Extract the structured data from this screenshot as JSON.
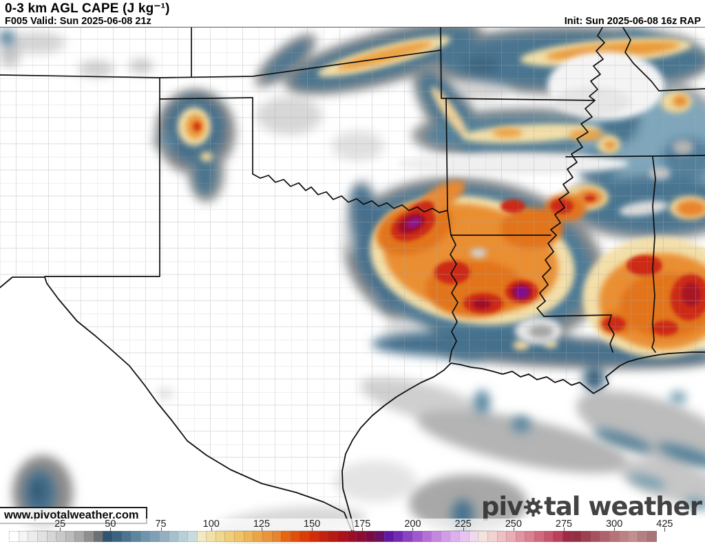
{
  "header": {
    "title": "0-3 km AGL CAPE (J kg⁻¹)",
    "valid": "F005 Valid: Sun 2025-06-08 21z",
    "init": "Init: Sun 2025-06-08 16z RAP"
  },
  "watermark": "www.pivotalweather.com",
  "logo": {
    "text_before_gear": "piv",
    "text_after_gear": "tal weather",
    "gear_icon": "gear-icon"
  },
  "colorbar": {
    "unit": "J kg⁻¹",
    "ticks": [
      "25",
      "50",
      "75",
      "100",
      "125",
      "150",
      "175",
      "200",
      "225",
      "250",
      "275",
      "300",
      "425"
    ],
    "swatches": [
      "#ffffff",
      "#f5f5f5",
      "#ececec",
      "#e1e1e1",
      "#d6d6d6",
      "#c9c9c9",
      "#bcbcbc",
      "#a9a9a9",
      "#8f8f8f",
      "#6d7074",
      "#2f5570",
      "#3a6480",
      "#4b7490",
      "#5c86a0",
      "#6e95ac",
      "#819fb4",
      "#93afc0",
      "#a6c0cc",
      "#b7cfd6",
      "#c8dbde",
      "#f3e9c3",
      "#f1e0a8",
      "#f0d78e",
      "#efcd79",
      "#eec366",
      "#edb553",
      "#eca545",
      "#ea9538",
      "#e8842c",
      "#e56513",
      "#e1500a",
      "#da3d06",
      "#d02d08",
      "#c4220d",
      "#b61a13",
      "#aa1119",
      "#9b0e26",
      "#8b0b33",
      "#7a0a40",
      "#6a0f63",
      "#6019a6",
      "#7429b4",
      "#8a41c2",
      "#a158ce",
      "#b56fd8",
      "#c487e0",
      "#d29ce8",
      "#ddafee",
      "#e7c3f2",
      "#f0d9ef",
      "#f4e3dd",
      "#f2d3cf",
      "#eec0c1",
      "#e9adb3",
      "#e295a0",
      "#da8090",
      "#d26a7e",
      "#c8556c",
      "#bb405a",
      "#a02a45",
      "#93303f",
      "#9d4150",
      "#a6525e",
      "#ae636b",
      "#b57377",
      "#bc8283",
      "#c28f8d",
      "#b58082",
      "#a87476"
    ]
  },
  "map_palette": {
    "halo_gray": "#8e8e8e",
    "shade_blue": "#48758f",
    "shade_tan": "#f3dfa9",
    "shade_orange": "#ef9a40",
    "shade_deep_orange": "#e4771c",
    "shade_red": "#ce2c10",
    "shade_dark_red": "#a31127",
    "shade_purple": "#8c1190"
  }
}
